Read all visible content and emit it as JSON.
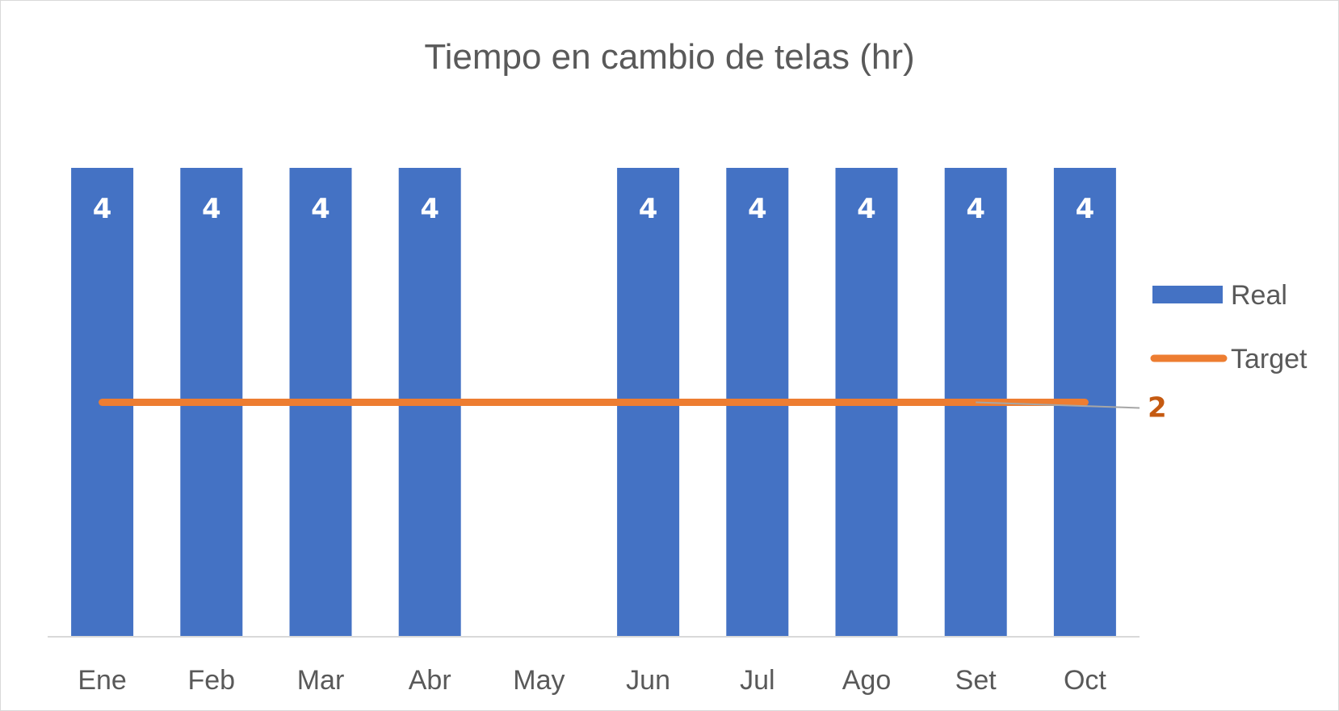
{
  "chart_data": {
    "type": "bar",
    "title": "Tiempo en cambio de telas (hr)",
    "categories": [
      "Ene",
      "Feb",
      "Mar",
      "Abr",
      "May",
      "Jun",
      "Jul",
      "Ago",
      "Set",
      "Oct"
    ],
    "series": [
      {
        "name": "Real",
        "kind": "bar",
        "color": "#4472C4",
        "values": [
          4,
          4,
          4,
          4,
          null,
          4,
          4,
          4,
          4,
          4
        ]
      },
      {
        "name": "Target",
        "kind": "line",
        "color": "#ED7D31",
        "values": [
          2,
          2,
          2,
          2,
          2,
          2,
          2,
          2,
          2,
          2
        ]
      }
    ],
    "data_labels": {
      "Real": [
        "4",
        "4",
        "4",
        "4",
        "",
        "4",
        "4",
        "4",
        "4",
        "4"
      ],
      "Target": "2"
    },
    "target_label_color": "#C55A11",
    "ylim": [
      0,
      4
    ],
    "grid": false,
    "legend_position": "right",
    "xlabel": "",
    "ylabel": ""
  }
}
